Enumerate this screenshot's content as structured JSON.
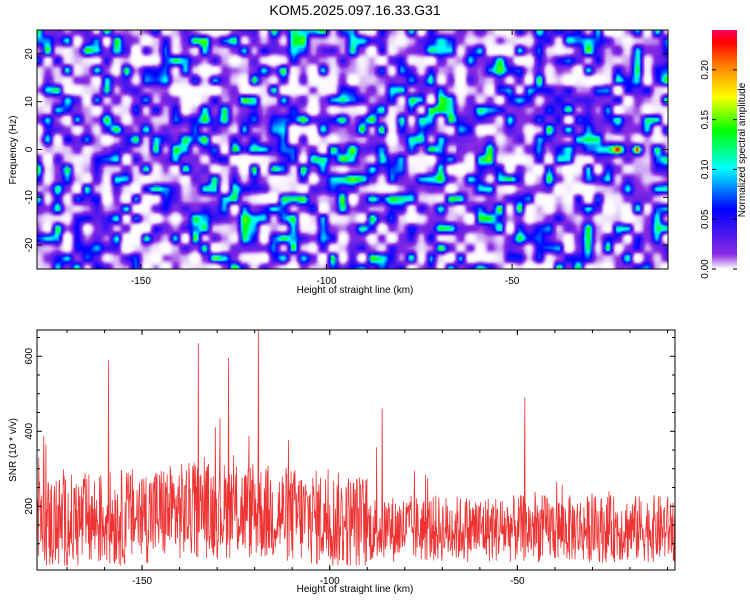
{
  "figure": {
    "title": "KOM5.2025.097.16.33.G31"
  },
  "chart_data": [
    {
      "type": "heatmap",
      "title": "KOM5.2025.097.16.33.G31",
      "xlabel": "Height of straight line (km)",
      "ylabel": "Frequency (Hz)",
      "xlim": [
        -178,
        -8
      ],
      "ylim": [
        -25,
        25
      ],
      "x_ticks": [
        -150,
        -100,
        -50
      ],
      "y_ticks": [
        -20,
        -10,
        0,
        10,
        20
      ],
      "colorbar": {
        "label": "Normalized spectral amplitude",
        "range": [
          0,
          0.24
        ],
        "ticks": [
          0.0,
          0.05,
          0.1,
          0.15,
          0.2
        ],
        "tick_labels": [
          "0.00",
          "0.05",
          "0.10",
          "0.15",
          "0.20"
        ],
        "colors": [
          "#ffffff",
          "#8a2be2",
          "#0000ff",
          "#00ffff",
          "#00ff00",
          "#ffff00",
          "#ff8000",
          "#ff0000",
          "#ff0060"
        ]
      },
      "notes_peak": {
        "x_range": [
          -40,
          -16
        ],
        "y": 0,
        "max_value": 0.22
      },
      "grid": false
    },
    {
      "type": "line",
      "xlabel": "Height of straight line (km)",
      "ylabel": "SNR (10 * v/v)",
      "xlim": [
        -178,
        -8
      ],
      "ylim": [
        30,
        670
      ],
      "x_ticks": [
        -150,
        -100,
        -50
      ],
      "y_ticks": [
        200,
        400,
        600
      ],
      "line_color": "#ee3333",
      "prominent_peaks": [
        {
          "x": -159,
          "y": 590
        },
        {
          "x": -135,
          "y": 635
        },
        {
          "x": -127,
          "y": 595
        },
        {
          "x": -119,
          "y": 670
        },
        {
          "x": -86,
          "y": 460
        },
        {
          "x": -48,
          "y": 490
        }
      ],
      "grid": false
    }
  ]
}
